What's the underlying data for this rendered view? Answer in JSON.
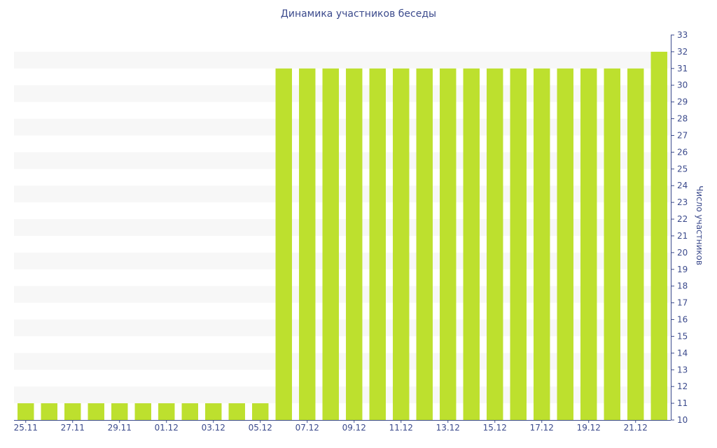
{
  "chart_data": {
    "type": "bar",
    "title": "Динамика участников беседы",
    "xlabel": "",
    "ylabel": "Число участников",
    "ylim": [
      10,
      33
    ],
    "y_ticks": [
      10,
      11,
      12,
      13,
      14,
      15,
      16,
      17,
      18,
      19,
      20,
      21,
      22,
      23,
      24,
      25,
      26,
      27,
      28,
      29,
      30,
      31,
      32,
      33
    ],
    "y_axis_side": "right",
    "categories": [
      "25.11",
      "26.11",
      "27.11",
      "28.11",
      "29.11",
      "30.11",
      "01.12",
      "02.12",
      "03.12",
      "04.12",
      "05.12",
      "06.12",
      "07.12",
      "08.12",
      "09.12",
      "10.12",
      "11.12",
      "12.12",
      "13.12",
      "14.12",
      "15.12",
      "16.12",
      "17.12",
      "18.12",
      "19.12",
      "20.12",
      "21.12",
      "22.12"
    ],
    "x_tick_labels": [
      "25.11",
      "27.11",
      "29.11",
      "01.12",
      "03.12",
      "05.12",
      "07.12",
      "09.12",
      "11.12",
      "13.12",
      "15.12",
      "17.12",
      "19.12",
      "21.12"
    ],
    "values": [
      11,
      11,
      11,
      11,
      11,
      11,
      11,
      11,
      11,
      11,
      11,
      31,
      31,
      31,
      31,
      31,
      31,
      31,
      31,
      31,
      31,
      31,
      31,
      31,
      31,
      31,
      31,
      32
    ],
    "bar_color": "#bde02e",
    "stripe_color": "#f7f7f7",
    "text_color": "#3b4a8c",
    "grid": "horizontal-bands"
  }
}
